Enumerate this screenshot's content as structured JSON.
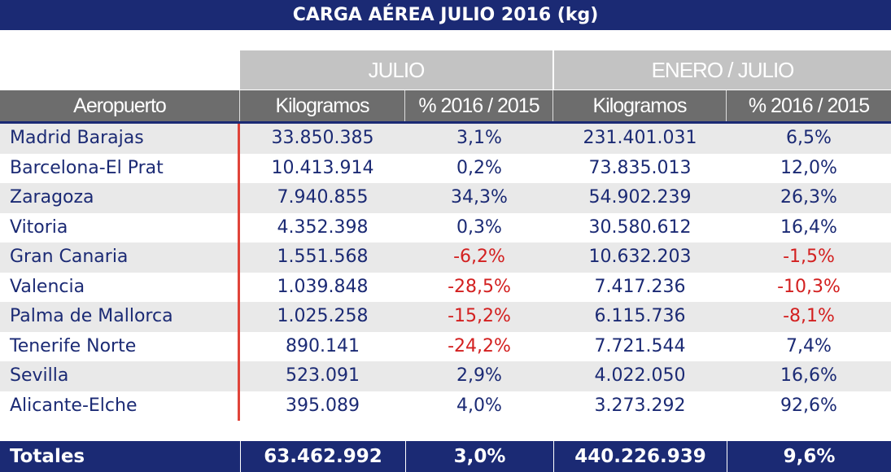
{
  "title": "CARGA AÉREA JULIO 2016 (kg)",
  "groups": [
    "JULIO",
    "ENERO / JULIO"
  ],
  "columns": [
    "Aeropuerto",
    "Kilogramos",
    "% 2016 / 2015",
    "Kilogramos",
    "% 2016 / 2015"
  ],
  "rows": [
    {
      "airport": "Madrid Barajas",
      "kg_jul": "33.850.385",
      "pct_jul": "3,1%",
      "kg_ytd": "231.401.031",
      "pct_ytd": "6,5%"
    },
    {
      "airport": "Barcelona-El Prat",
      "kg_jul": "10.413.914",
      "pct_jul": "0,2%",
      "kg_ytd": "73.835.013",
      "pct_ytd": "12,0%"
    },
    {
      "airport": "Zaragoza",
      "kg_jul": "7.940.855",
      "pct_jul": "34,3%",
      "kg_ytd": "54.902.239",
      "pct_ytd": "26,3%"
    },
    {
      "airport": "Vitoria",
      "kg_jul": "4.352.398",
      "pct_jul": "0,3%",
      "kg_ytd": "30.580.612",
      "pct_ytd": "16,4%"
    },
    {
      "airport": "Gran Canaria",
      "kg_jul": "1.551.568",
      "pct_jul": "-6,2%",
      "kg_ytd": "10.632.203",
      "pct_ytd": "-1,5%"
    },
    {
      "airport": "Valencia",
      "kg_jul": "1.039.848",
      "pct_jul": "-28,5%",
      "kg_ytd": "7.417.236",
      "pct_ytd": "-10,3%"
    },
    {
      "airport": "Palma de Mallorca",
      "kg_jul": "1.025.258",
      "pct_jul": "-15,2%",
      "kg_ytd": "6.115.736",
      "pct_ytd": "-8,1%"
    },
    {
      "airport": "Tenerife Norte",
      "kg_jul": "890.141",
      "pct_jul": "-24,2%",
      "kg_ytd": "7.721.544",
      "pct_ytd": "7,4%"
    },
    {
      "airport": "Sevilla",
      "kg_jul": "523.091",
      "pct_jul": "2,9%",
      "kg_ytd": "4.022.050",
      "pct_ytd": "16,6%"
    },
    {
      "airport": "Alicante-Elche",
      "kg_jul": "395.089",
      "pct_jul": "4,0%",
      "kg_ytd": "3.273.292",
      "pct_ytd": "92,6%"
    }
  ],
  "totals": {
    "label": "Totales",
    "kg_jul": "63.462.992",
    "pct_jul": "3,0%",
    "kg_ytd": "440.226.939",
    "pct_ytd": "9,6%"
  },
  "colors": {
    "navy": "#1b2a74",
    "negative": "#d32020",
    "accent_line": "#e0443a"
  }
}
